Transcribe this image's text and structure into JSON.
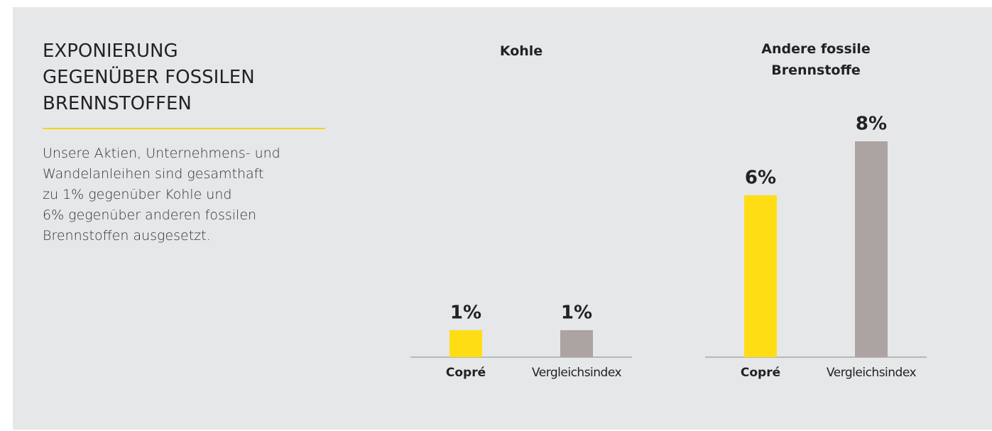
{
  "panel": {
    "title_lines": [
      "EXPONIERUNG",
      "GEGENÜBER FOSSILEN",
      "BRENNSTOFFEN"
    ],
    "body_lines": [
      "Unsere Aktien, Unternehmens- und",
      "Wandelanleihen sind gesamthaft",
      "zu 1% gegenüber Kohle und",
      "6% gegenüber anderen fossilen",
      "Brennstoffen ausgesetzt."
    ]
  },
  "chart_data": [
    {
      "type": "bar",
      "title": "Kohle",
      "categories": [
        "Copré",
        "Vergleichsindex"
      ],
      "values": [
        1,
        1
      ],
      "value_labels": [
        "1%",
        "1%"
      ],
      "colors": [
        "#ffdd15",
        "#aca3a3"
      ]
    },
    {
      "type": "bar",
      "title": "Andere fossile Brennstoffe",
      "categories": [
        "Copré",
        "Vergleichsindex"
      ],
      "values": [
        6,
        8
      ],
      "value_labels": [
        "6%",
        "8%"
      ],
      "colors": [
        "#ffdd15",
        "#aca3a3"
      ]
    }
  ]
}
